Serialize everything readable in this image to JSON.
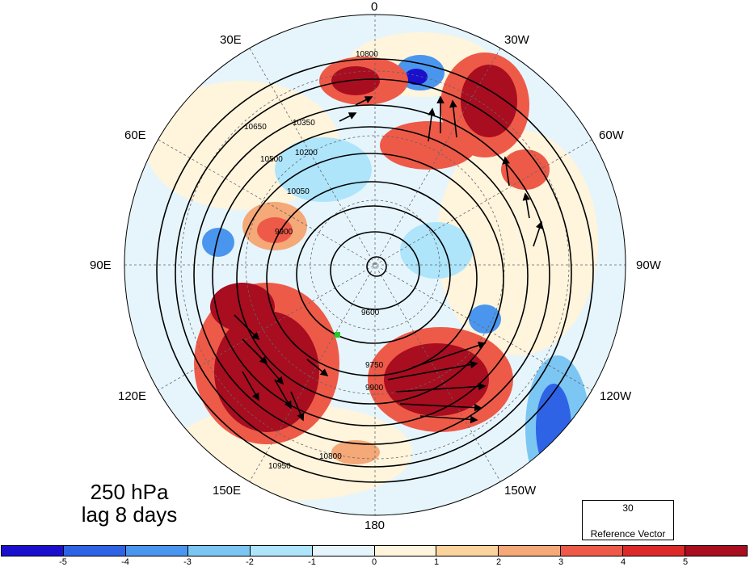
{
  "map": {
    "projection": "north polar stereographic",
    "longitude_labels": {
      "lon_0": "0",
      "lon_30e": "30E",
      "lon_30w": "30W",
      "lon_60e": "60E",
      "lon_60w": "60W",
      "lon_90e": "90E",
      "lon_90w": "90W",
      "lon_120e": "120E",
      "lon_120w": "120W",
      "lon_150e": "150E",
      "lon_150w": "150W",
      "lon_180": "180"
    },
    "contour_labels": [
      "10800",
      "10650",
      "10500",
      "10350",
      "10200",
      "10050",
      "9900",
      "9750",
      "9600",
      "10950",
      "9900",
      "10800"
    ],
    "marker_color": "#22cc22"
  },
  "title": {
    "line1": "250 hPa",
    "line2": "lag 8 days"
  },
  "reference_vector": {
    "value": "30",
    "caption": "Reference Vector"
  },
  "colorbar": {
    "colors": [
      "#1a0fcc",
      "#2f63e6",
      "#4a96ee",
      "#7cc6f4",
      "#aee5fb",
      "#e6f5fc",
      "#fff4dc",
      "#fbd39c",
      "#f5a878",
      "#ee5a48",
      "#dc2a2a",
      "#a80d20"
    ],
    "tick_labels": [
      "-5",
      "-4",
      "-3",
      "-2",
      "-1",
      "0",
      "1",
      "2",
      "3",
      "4",
      "5"
    ]
  }
}
